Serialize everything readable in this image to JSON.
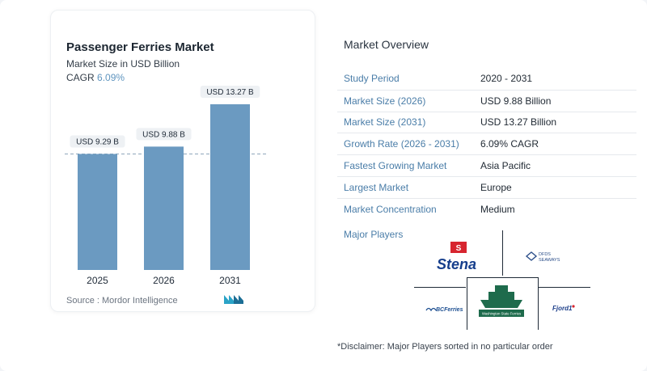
{
  "chart_data": {
    "type": "bar",
    "title": "Passenger Ferries Market",
    "subtitle": "Market Size in USD Billion",
    "cagr_label": "CAGR",
    "cagr_value": "6.09%",
    "categories": [
      "2025",
      "2026",
      "2031"
    ],
    "values": [
      9.29,
      9.88,
      13.27
    ],
    "data_labels": [
      "USD 9.29 B",
      "USD 9.88 B",
      "USD 13.27 B"
    ],
    "bar_color": "#6b9ac1",
    "reference_line": "dashed line at 2025 value",
    "ylim": [
      0,
      14.5
    ]
  },
  "source": "Source :  Mordor Intelligence",
  "overview": {
    "title": "Market Overview",
    "rows": [
      {
        "key": "Study Period",
        "value": "2020 - 2031"
      },
      {
        "key": "Market Size (2026)",
        "value": "USD 9.88 Billion"
      },
      {
        "key": "Market Size (2031)",
        "value": "USD 13.27 Billion"
      },
      {
        "key": "Growth Rate (2026 - 2031)",
        "value": "6.09% CAGR"
      },
      {
        "key": "Fastest Growing Market",
        "value": "Asia Pacific"
      },
      {
        "key": "Largest Market",
        "value": "Europe"
      },
      {
        "key": "Market Concentration",
        "value": "Medium"
      }
    ],
    "players_title": "Major Players",
    "players": [
      "Stena",
      "DFDS SEAWAYS",
      "BC Ferries",
      "Washington State Ferries",
      "Fjord1"
    ],
    "disclaimer": "*Disclaimer: Major Players sorted in no particular order"
  },
  "colors": {
    "accent_blue": "#4a7da8",
    "bar": "#6b9ac1",
    "stena_red": "#d7252f",
    "stena_blue": "#163e8c",
    "wsf_green": "#1e6b4c"
  }
}
